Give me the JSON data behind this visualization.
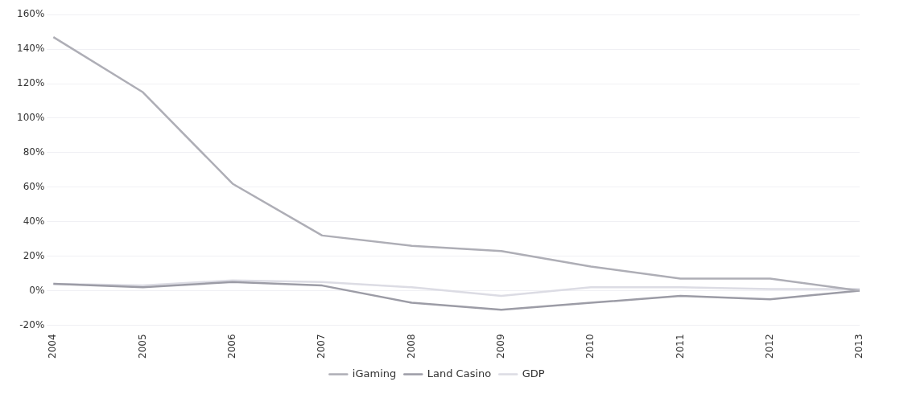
{
  "chart_data": {
    "type": "line",
    "categories": [
      "2004",
      "2005",
      "2006",
      "2007",
      "2008",
      "2009",
      "2010",
      "2011",
      "2012",
      "2013"
    ],
    "series": [
      {
        "name": "iGaming",
        "color": "#aeaeb6",
        "values": [
          147,
          115,
          62,
          32,
          26,
          23,
          14,
          7,
          7,
          0
        ]
      },
      {
        "name": "Land Casino",
        "color": "#9c9ca6",
        "values": [
          4,
          2,
          5,
          3,
          -7,
          -11,
          -7,
          -3,
          -5,
          0
        ]
      },
      {
        "name": "GDP",
        "color": "#dcdce4",
        "values": [
          4,
          3,
          6,
          5,
          2,
          -3,
          2,
          2,
          1,
          1
        ]
      }
    ],
    "ylim": [
      -20,
      160
    ],
    "yticks": [
      {
        "value": -20,
        "label": "-20%"
      },
      {
        "value": 0,
        "label": "0%"
      },
      {
        "value": 20,
        "label": "20%"
      },
      {
        "value": 40,
        "label": "40%"
      },
      {
        "value": 60,
        "label": "60%"
      },
      {
        "value": 80,
        "label": "80%"
      },
      {
        "value": 100,
        "label": "100%"
      },
      {
        "value": 120,
        "label": "120%"
      },
      {
        "value": 140,
        "label": "140%"
      },
      {
        "value": 160,
        "label": "160%"
      }
    ],
    "grid": "y",
    "legend": "bottom",
    "marker": "none",
    "line_style": "solid"
  }
}
